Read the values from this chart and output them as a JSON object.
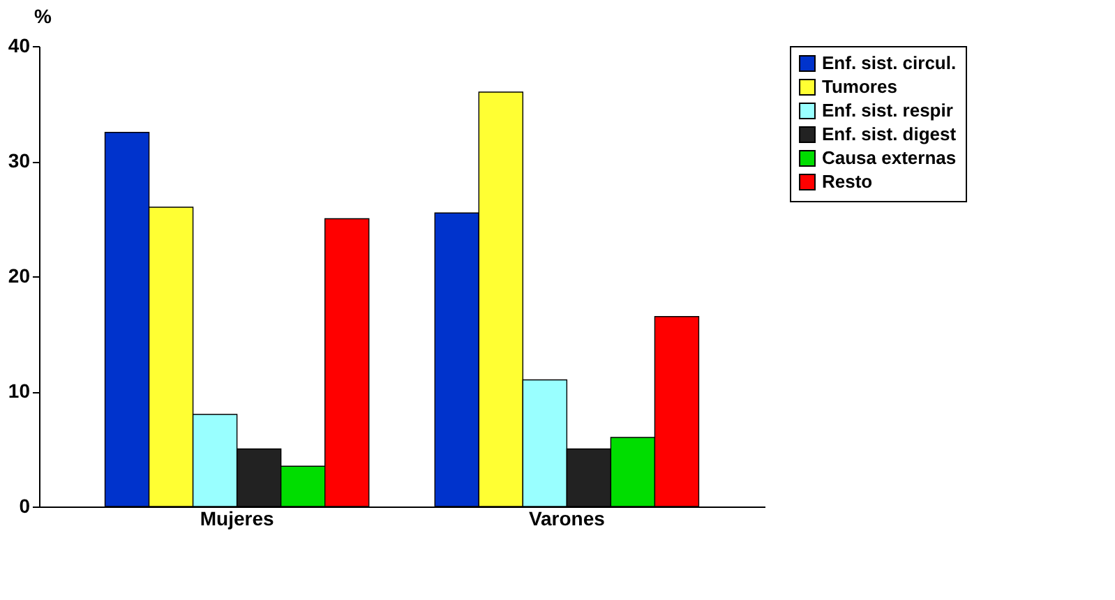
{
  "chart_data": {
    "type": "bar",
    "ylabel": "%",
    "categories": [
      "Mujeres",
      "Varones"
    ],
    "series": [
      {
        "name": "Enf. sist. circul.",
        "color": "#0033cc",
        "values": [
          32.5,
          25.5
        ]
      },
      {
        "name": "Tumores",
        "color": "#ffff33",
        "values": [
          26,
          36
        ]
      },
      {
        "name": "Enf. sist. respir",
        "color": "#99ffff",
        "values": [
          8,
          11
        ]
      },
      {
        "name": "Enf. sist. digest",
        "color": "#222222",
        "values": [
          5,
          5
        ]
      },
      {
        "name": "Causa externas",
        "color": "#00dd00",
        "values": [
          3.5,
          6
        ]
      },
      {
        "name": "Resto",
        "color": "#ff0000",
        "values": [
          25,
          16.5
        ]
      }
    ],
    "ylim": [
      0,
      40
    ],
    "yticks": [
      0,
      10,
      20,
      30,
      40
    ],
    "grid": false,
    "legend": "right"
  }
}
